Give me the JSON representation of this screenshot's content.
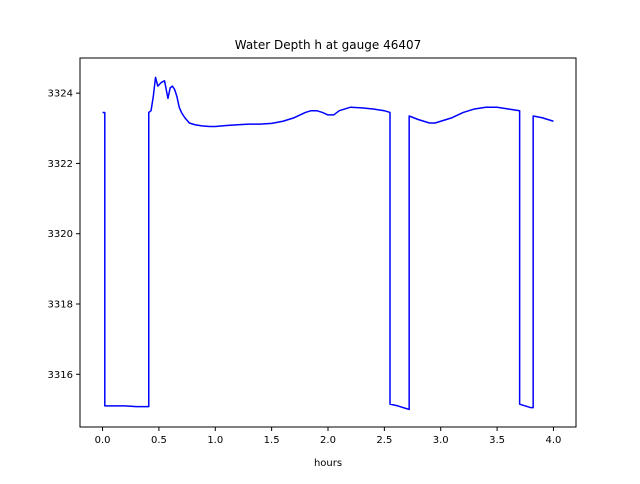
{
  "chart_data": {
    "type": "line",
    "title": "Water Depth h at gauge 46407",
    "xlabel": "hours",
    "ylabel": "",
    "xlim": [
      -0.2,
      4.2
    ],
    "ylim": [
      3314.5,
      3325.0
    ],
    "xticks": [
      0.0,
      0.5,
      1.0,
      1.5,
      2.0,
      2.5,
      3.0,
      3.5,
      4.0
    ],
    "xtick_labels": [
      "0.0",
      "0.5",
      "1.0",
      "1.5",
      "2.0",
      "2.5",
      "3.0",
      "3.5",
      "4.0"
    ],
    "yticks": [
      3316,
      3318,
      3320,
      3322,
      3324
    ],
    "ytick_labels": [
      "3316",
      "3318",
      "3320",
      "3322",
      "3324"
    ],
    "grid": false,
    "series": [
      {
        "color": "#0000ff",
        "x": [
          0.0,
          0.02,
          0.02,
          0.1,
          0.2,
          0.3,
          0.41,
          0.41,
          0.43,
          0.45,
          0.47,
          0.49,
          0.52,
          0.55,
          0.58,
          0.6,
          0.62,
          0.64,
          0.66,
          0.68,
          0.7,
          0.73,
          0.77,
          0.82,
          0.88,
          0.95,
          1.0,
          1.1,
          1.2,
          1.3,
          1.4,
          1.5,
          1.6,
          1.7,
          1.8,
          1.85,
          1.9,
          1.95,
          2.0,
          2.05,
          2.1,
          2.15,
          2.2,
          2.3,
          2.4,
          2.5,
          2.55,
          2.55,
          2.62,
          2.7,
          2.72,
          2.72,
          2.8,
          2.9,
          2.95,
          3.0,
          3.1,
          3.2,
          3.3,
          3.4,
          3.5,
          3.6,
          3.7,
          3.7,
          3.8,
          3.82,
          3.82,
          3.9,
          4.0
        ],
        "y": [
          3323.45,
          3323.45,
          3315.1,
          3315.1,
          3315.1,
          3315.08,
          3315.08,
          3323.45,
          3323.5,
          3323.9,
          3324.45,
          3324.2,
          3324.3,
          3324.35,
          3323.85,
          3324.15,
          3324.2,
          3324.1,
          3323.9,
          3323.6,
          3323.45,
          3323.3,
          3323.15,
          3323.1,
          3323.07,
          3323.05,
          3323.05,
          3323.08,
          3323.1,
          3323.12,
          3323.12,
          3323.14,
          3323.2,
          3323.3,
          3323.45,
          3323.5,
          3323.5,
          3323.45,
          3323.38,
          3323.38,
          3323.5,
          3323.55,
          3323.6,
          3323.58,
          3323.55,
          3323.5,
          3323.45,
          3315.15,
          3315.1,
          3315.02,
          3315.0,
          3323.35,
          3323.25,
          3323.15,
          3323.15,
          3323.2,
          3323.3,
          3323.45,
          3323.55,
          3323.6,
          3323.6,
          3323.55,
          3323.5,
          3315.15,
          3315.05,
          3315.05,
          3323.35,
          3323.3,
          3323.2
        ]
      }
    ]
  }
}
